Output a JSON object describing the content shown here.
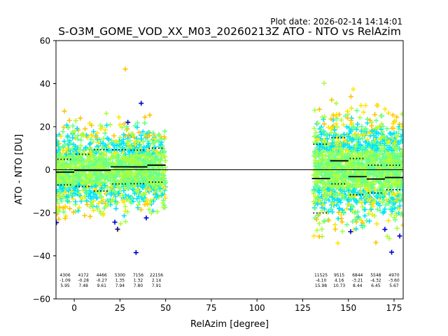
{
  "plot_date": "Plot date: 2026-02-14 14:14:01",
  "chart_data": {
    "type": "scatter",
    "title": "S-O3M_GOME_VOD_XX_M03_20260213Z ATO - NTO vs RelAzim",
    "xlabel": "RelAzim [degree]",
    "ylabel": "ATO - NTO [DU]",
    "xlim": [
      -10,
      180
    ],
    "ylim": [
      -60,
      60
    ],
    "xticks": [
      0,
      25,
      50,
      75,
      100,
      125,
      150,
      175
    ],
    "yticks": [
      -60,
      -40,
      -20,
      0,
      20,
      40,
      60
    ],
    "grid": false,
    "density_colors": [
      "#0000cd",
      "#00e5ff",
      "#66ff8c",
      "#a8ff3e",
      "#ffe600",
      "#ffc400"
    ],
    "clusters": [
      {
        "x_range": [
          -10,
          50
        ],
        "center": 0,
        "spread": 20
      },
      {
        "x_range": [
          131,
          180
        ],
        "center": 0,
        "spread": 25
      }
    ],
    "bins": [
      {
        "x_range": [
          -10,
          0
        ],
        "count": "4306",
        "mean": -1.09,
        "std": 5.95,
        "mean_label": "-1.09",
        "std_label": "5.95"
      },
      {
        "x_range": [
          0,
          10
        ],
        "count": "4172",
        "mean": -0.28,
        "std": 7.48,
        "mean_label": "-0.28",
        "std_label": "7.48"
      },
      {
        "x_range": [
          10,
          20
        ],
        "count": "4466",
        "mean": -0.27,
        "std": 9.61,
        "mean_label": "-0.27",
        "std_label": "9.61"
      },
      {
        "x_range": [
          20,
          30
        ],
        "count": "5300",
        "mean": 1.35,
        "std": 7.94,
        "mean_label": "1.35",
        "std_label": "7.94"
      },
      {
        "x_range": [
          30,
          40
        ],
        "count": "7156",
        "mean": 1.32,
        "std": 7.8,
        "mean_label": "1.32",
        "std_label": "7.80"
      },
      {
        "x_range": [
          40,
          50
        ],
        "count": "22156",
        "mean": 2.14,
        "std": 7.91,
        "mean_label": "2.14",
        "std_label": "7.91"
      },
      {
        "x_range": [
          130,
          140
        ],
        "count": "11525",
        "mean": -4.1,
        "std": 15.98,
        "mean_label": "-4.10",
        "std_label": "15.98"
      },
      {
        "x_range": [
          140,
          150
        ],
        "count": "9515",
        "mean": 4.16,
        "std": 10.73,
        "mean_label": "4.16",
        "std_label": "10.73"
      },
      {
        "x_range": [
          150,
          160
        ],
        "count": "6844",
        "mean": -3.21,
        "std": 8.44,
        "mean_label": "-3.21",
        "std_label": "8.44"
      },
      {
        "x_range": [
          160,
          170
        ],
        "count": "5548",
        "mean": -4.32,
        "std": 6.45,
        "mean_label": "-4.32",
        "std_label": "6.45"
      },
      {
        "x_range": [
          170,
          180
        ],
        "count": "4970",
        "mean": -3.6,
        "std": 5.67,
        "mean_label": "-3.60",
        "std_label": "5.67"
      }
    ]
  }
}
